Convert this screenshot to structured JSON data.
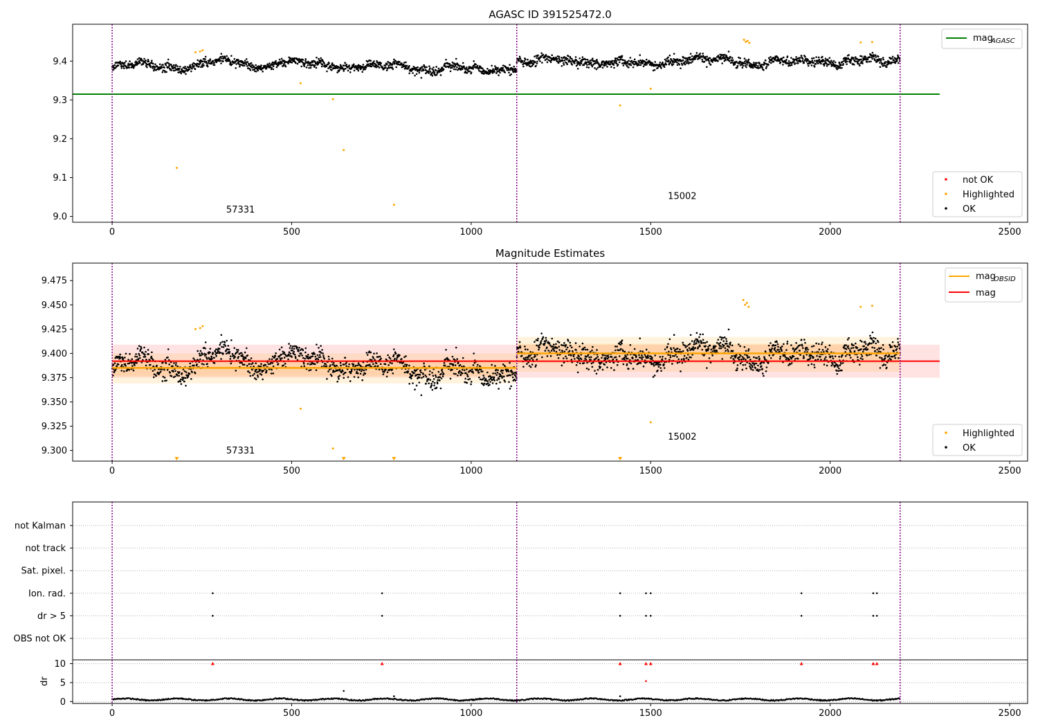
{
  "chart_data": [
    {
      "type": "scatter",
      "title": "AGASC ID 391525472.0",
      "xlim": [
        -110,
        2550
      ],
      "ylim": [
        8.985,
        9.495
      ],
      "xticks": [
        0,
        500,
        1000,
        1500,
        2000,
        2500
      ],
      "yticks": [
        9.0,
        9.1,
        9.2,
        9.3,
        9.4
      ],
      "ytick_labels": [
        "9.0",
        "9.1",
        "9.2",
        "9.3",
        "9.4"
      ],
      "obsid_boundaries": [
        0,
        1127,
        2195
      ],
      "obsid_labels": [
        {
          "text": "57331",
          "x": 560,
          "y": 9.01
        },
        {
          "text": "15002",
          "x": 1665,
          "y": 9.045
        }
      ],
      "mag_agasc": {
        "value": 9.315,
        "x_range": [
          -110,
          2305
        ]
      },
      "highlighted_points": [
        {
          "x": 180,
          "y": 9.125
        },
        {
          "x": 525,
          "y": 9.343
        },
        {
          "x": 615,
          "y": 9.302
        },
        {
          "x": 645,
          "y": 9.171
        },
        {
          "x": 785,
          "y": 9.03
        },
        {
          "x": 1415,
          "y": 9.286
        },
        {
          "x": 1500,
          "y": 9.329
        },
        {
          "x": 232,
          "y": 9.423
        },
        {
          "x": 245,
          "y": 9.425
        },
        {
          "x": 252,
          "y": 9.428
        },
        {
          "x": 1760,
          "y": 9.455
        },
        {
          "x": 1765,
          "y": 9.45
        },
        {
          "x": 1770,
          "y": 9.452
        },
        {
          "x": 1775,
          "y": 9.447
        },
        {
          "x": 2085,
          "y": 9.448
        },
        {
          "x": 2117,
          "y": 9.449
        }
      ],
      "ok_series_segments": [
        {
          "x_start": 0,
          "x_end": 1127,
          "mean": 9.385,
          "scatter": 0.012
        },
        {
          "x_start": 1127,
          "x_end": 2195,
          "mean": 9.4,
          "scatter": 0.013
        }
      ],
      "legend_top": [
        {
          "label": "mag",
          "subscript": "AGASC",
          "color": "#008000"
        }
      ],
      "legend_bottom": [
        {
          "label": "not OK",
          "color": "#ff0000"
        },
        {
          "label": "Highlighted",
          "color": "#ffa500"
        },
        {
          "label": "OK",
          "color": "#000000"
        }
      ],
      "grid": false
    },
    {
      "type": "scatter",
      "title": "Magnitude Estimates",
      "xlim": [
        -110,
        2550
      ],
      "ylim": [
        9.289,
        9.493
      ],
      "xticks": [
        0,
        500,
        1000,
        1500,
        2000,
        2500
      ],
      "yticks": [
        9.3,
        9.325,
        9.35,
        9.375,
        9.4,
        9.425,
        9.45,
        9.475
      ],
      "ytick_labels": [
        "9.300",
        "9.325",
        "9.350",
        "9.375",
        "9.400",
        "9.425",
        "9.450",
        "9.475"
      ],
      "obsid_boundaries": [
        0,
        1127,
        2195
      ],
      "obsid_labels": [
        {
          "text": "57331",
          "x": 560,
          "y": 9.297
        },
        {
          "text": "15002",
          "x": 1665,
          "y": 9.311
        }
      ],
      "mag": {
        "value": 9.392,
        "band": [
          9.375,
          9.409
        ],
        "x_range": [
          0,
          2305
        ]
      },
      "mag_obsid": [
        {
          "x_range": [
            0,
            1127
          ],
          "value": 9.385,
          "band": [
            9.369,
            9.4
          ],
          "inner_band": [
            9.377,
            9.393
          ]
        },
        {
          "x_range": [
            1127,
            2195
          ],
          "value": 9.4,
          "band": [
            9.381,
            9.417
          ],
          "inner_band": [
            9.39,
            9.41
          ]
        }
      ],
      "highlighted_points": [
        {
          "x": 525,
          "y": 9.343
        },
        {
          "x": 615,
          "y": 9.302
        },
        {
          "x": 1500,
          "y": 9.329
        },
        {
          "x": 232,
          "y": 9.425
        },
        {
          "x": 245,
          "y": 9.426
        },
        {
          "x": 252,
          "y": 9.428
        },
        {
          "x": 1758,
          "y": 9.455
        },
        {
          "x": 1763,
          "y": 9.45
        },
        {
          "x": 1768,
          "y": 9.452
        },
        {
          "x": 1773,
          "y": 9.448
        },
        {
          "x": 2085,
          "y": 9.448
        },
        {
          "x": 2117,
          "y": 9.449
        }
      ],
      "clipped_points_x": [
        180,
        645,
        785,
        1415
      ],
      "ok_series_segments": [
        {
          "x_start": 0,
          "x_end": 1127,
          "mean": 9.385,
          "scatter": 0.012
        },
        {
          "x_start": 1127,
          "x_end": 2195,
          "mean": 9.4,
          "scatter": 0.013
        }
      ],
      "legend_top": [
        {
          "label": "mag",
          "subscript": "OBSID",
          "color": "#ffa500"
        },
        {
          "label": "mag",
          "subscript": "",
          "color": "#ff0000"
        }
      ],
      "legend_bottom": [
        {
          "label": "Highlighted",
          "color": "#ffa500"
        },
        {
          "label": "OK",
          "color": "#000000"
        }
      ],
      "grid": false
    },
    {
      "type": "scatter",
      "title": "",
      "xlim": [
        -110,
        2550
      ],
      "xticks": [
        0,
        500,
        1000,
        1500,
        2000,
        2500
      ],
      "obsid_boundaries": [
        0,
        1127,
        2195
      ],
      "flag_rows": [
        "not Kalman",
        "not track",
        "Sat. pixel.",
        "Ion. rad.",
        "dr > 5",
        "OBS not OK"
      ],
      "flags": [
        {
          "row": "Ion. rad.",
          "x": [
            280,
            752,
            1415,
            1487,
            1500,
            1920,
            2120,
            2130
          ]
        },
        {
          "row": "dr > 5",
          "x": [
            280,
            752,
            1415,
            1487,
            1500,
            1920,
            2120,
            2130
          ]
        }
      ],
      "dr_ylim": [
        -0.5,
        11
      ],
      "dr_yticks": [
        0,
        5,
        10
      ],
      "dr_ylabel": "dr",
      "dr_clipped_x": [
        280,
        752,
        1415,
        1487,
        1500,
        1920,
        2120,
        2130
      ],
      "dr_outliers": [
        {
          "x": 1487,
          "y": 5.4
        },
        {
          "x": 645,
          "y": 2.8
        },
        {
          "x": 1415,
          "y": 1.4
        },
        {
          "x": 785,
          "y": 1.4
        }
      ],
      "dr_baseline": 0.4,
      "grid": "dotted rows"
    }
  ]
}
